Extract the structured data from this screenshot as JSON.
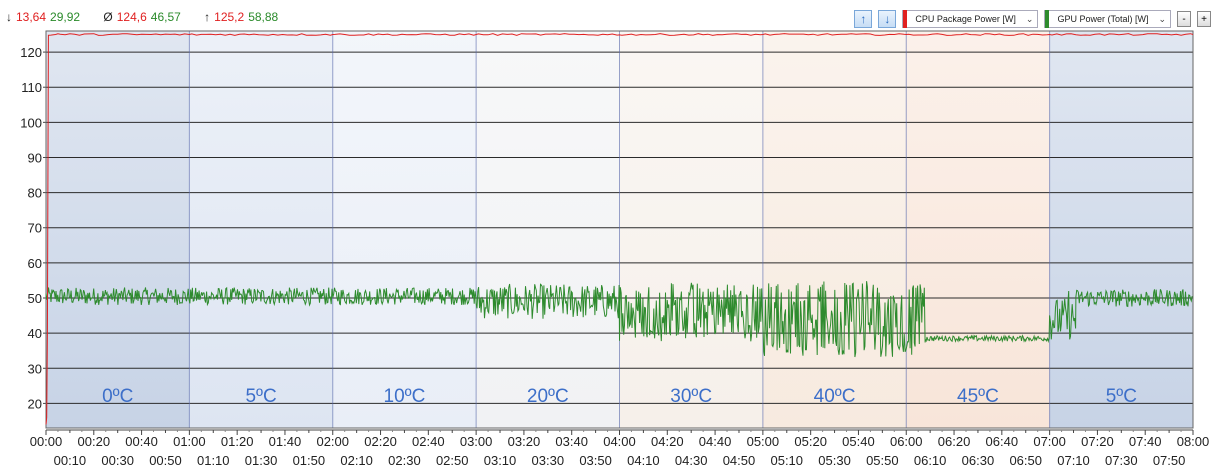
{
  "stats": {
    "min": {
      "symbol": "↓",
      "cpu": "13,64",
      "gpu": "29,92"
    },
    "avg": {
      "symbol": "Ø",
      "cpu": "124,6",
      "gpu": "46,57"
    },
    "max": {
      "symbol": "↑",
      "cpu": "125,2",
      "gpu": "58,88"
    }
  },
  "toolbar": {
    "series1_label": "CPU Package Power [W]",
    "series2_label": "GPU Power (Total) [W]",
    "minus_label": "-",
    "plus_label": "+"
  },
  "chart_data": {
    "type": "line",
    "xlim_minutes": [
      0,
      480
    ],
    "ylim": [
      13,
      126
    ],
    "y_ticks": [
      20,
      30,
      40,
      50,
      60,
      70,
      80,
      90,
      100,
      110,
      120
    ],
    "x_ticks_top": [
      "00:00",
      "00:20",
      "00:40",
      "01:00",
      "01:20",
      "01:40",
      "02:00",
      "02:20",
      "02:40",
      "03:00",
      "03:20",
      "03:40",
      "04:00",
      "04:20",
      "04:40",
      "05:00",
      "05:20",
      "05:40",
      "06:00",
      "06:20",
      "06:40",
      "07:00",
      "07:20",
      "07:40",
      "08:00"
    ],
    "x_ticks_bottom": [
      "00:10",
      "00:30",
      "00:50",
      "01:10",
      "01:30",
      "01:50",
      "02:10",
      "02:30",
      "02:50",
      "03:10",
      "03:30",
      "03:50",
      "04:10",
      "04:30",
      "04:50",
      "05:10",
      "05:30",
      "05:50",
      "06:10",
      "06:30",
      "06:50",
      "07:10",
      "07:30",
      "07:50"
    ],
    "bands": [
      {
        "start_min": 0,
        "end_min": 60,
        "label": "0ºC",
        "color": "#c7d3e6"
      },
      {
        "start_min": 60,
        "end_min": 120,
        "label": "5ºC",
        "color": "#dde5f2"
      },
      {
        "start_min": 120,
        "end_min": 180,
        "label": "10ºC",
        "color": "#e9eef7"
      },
      {
        "start_min": 180,
        "end_min": 240,
        "label": "20ºC",
        "color": "#f1f2f4"
      },
      {
        "start_min": 240,
        "end_min": 300,
        "label": "30ºC",
        "color": "#f6f0ea"
      },
      {
        "start_min": 300,
        "end_min": 360,
        "label": "40ºC",
        "color": "#f7eadf"
      },
      {
        "start_min": 360,
        "end_min": 420,
        "label": "45ºC",
        "color": "#f8e5d9"
      },
      {
        "start_min": 420,
        "end_min": 480,
        "label": "5ºC",
        "color": "#c7d3e6"
      }
    ],
    "series": [
      {
        "name": "CPU Package Power [W]",
        "color": "#e02020",
        "points": [
          [
            0,
            14
          ],
          [
            0.3,
            16
          ],
          [
            0.6,
            40
          ],
          [
            1,
            124.8
          ],
          [
            5,
            125.2
          ],
          [
            60,
            125
          ],
          [
            120,
            125
          ],
          [
            180,
            125
          ],
          [
            240,
            124.9
          ],
          [
            300,
            125
          ],
          [
            360,
            125
          ],
          [
            420,
            125
          ],
          [
            480,
            125
          ]
        ]
      },
      {
        "name": "GPU Power (Total) [W]",
        "color": "#2e8b2e",
        "segments": [
          {
            "start": 0,
            "end": 180,
            "base": 50.5,
            "noise": 2.5
          },
          {
            "start": 180,
            "end": 240,
            "base": 49,
            "noise": 5
          },
          {
            "start": 240,
            "end": 300,
            "base": 46,
            "noise": 7
          },
          {
            "start": 300,
            "end": 368,
            "base": 44,
            "noise": 9
          },
          {
            "start": 368,
            "end": 420,
            "base": 38.5,
            "noise": 0.8
          },
          {
            "start": 420,
            "end": 431,
            "base": 44,
            "noise": 6
          },
          {
            "start": 431,
            "end": 480,
            "base": 50,
            "noise": 2.5
          }
        ]
      }
    ]
  }
}
